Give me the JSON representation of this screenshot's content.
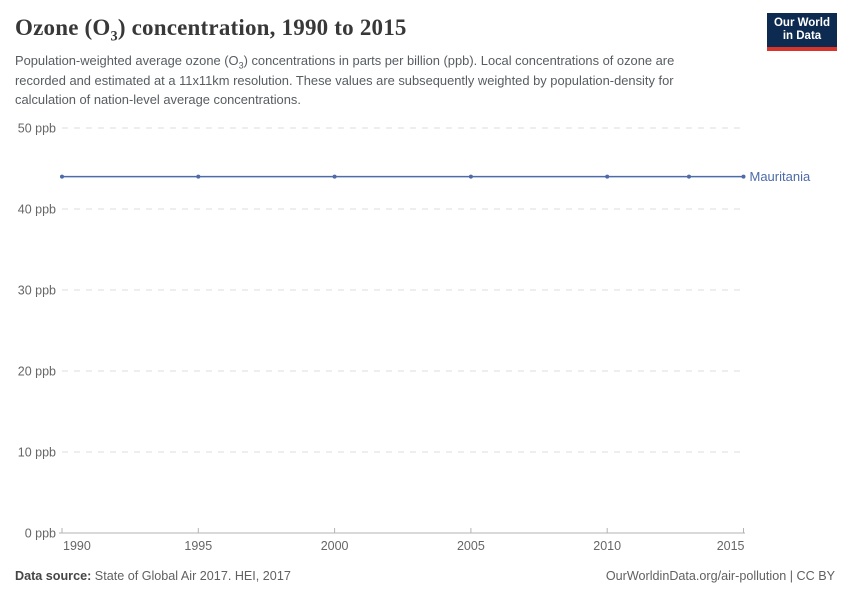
{
  "header": {
    "title": {
      "part1": "Ozone (O",
      "sub": "3",
      "part2": ") concentration, 1990 to 2015"
    },
    "subtitle": {
      "part1": "Population-weighted average ozone (O",
      "sub": "3",
      "part2": ") concentrations in parts per billion (ppb). Local concentrations of ozone are recorded and estimated at a 11x11km resolution. These values are subsequently weighted by population-density for calculation of nation-level average concentrations."
    },
    "logo": {
      "line1": "Our World",
      "line2": "in Data",
      "bg_color": "#0d2b50",
      "accent_color": "#d7342c"
    }
  },
  "chart_data": {
    "type": "line",
    "title": "Ozone (O3) concentration, 1990 to 2015",
    "x": [
      1990,
      1995,
      2000,
      2005,
      2010,
      2013,
      2015
    ],
    "series": [
      {
        "name": "Mauritania",
        "values": [
          44,
          44,
          44,
          44,
          44,
          44,
          44
        ],
        "color": "#4d6ba8"
      }
    ],
    "unit": "ppb",
    "xlim": [
      1990,
      2015
    ],
    "ylim": [
      0,
      50
    ],
    "xticks": [
      1990,
      1995,
      2000,
      2005,
      2010,
      2015
    ],
    "yticks": [
      {
        "value": 0,
        "label": "0 ppb"
      },
      {
        "value": 10,
        "label": "10 ppb"
      },
      {
        "value": 20,
        "label": "20 ppb"
      },
      {
        "value": 30,
        "label": "30 ppb"
      },
      {
        "value": 40,
        "label": "40 ppb"
      },
      {
        "value": 50,
        "label": "50 ppb"
      }
    ],
    "grid": "horizontal-dashed",
    "legend_position": "right-of-line",
    "colors": {
      "grid": "#dcdcdc",
      "axis": "#b3b3b3",
      "tick_text": "#666666"
    }
  },
  "footer": {
    "source_label": "Data source:",
    "source_text": " State of Global Air 2017. HEI, 2017",
    "right_text": "OurWorldinData.org/air-pollution | CC BY"
  }
}
